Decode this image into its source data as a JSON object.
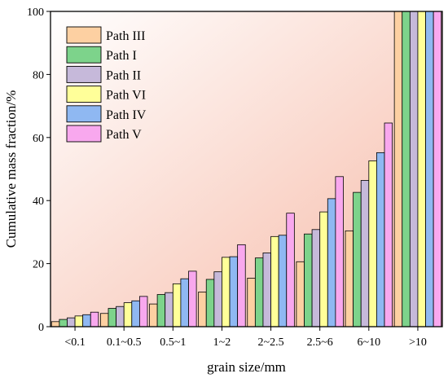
{
  "chart_data": {
    "type": "bar",
    "xlabel": "grain size/mm",
    "ylabel": "Cumulative mass fraction/%",
    "ylim": [
      0,
      100
    ],
    "yticks": [
      0,
      20,
      40,
      60,
      80,
      100
    ],
    "grid": false,
    "legend_position": "top-left",
    "background_gradient": [
      "#ffffff",
      "#f6b9a6"
    ],
    "categories": [
      "<0.1",
      "0.1~0.5",
      "0.5~1",
      "1~2",
      "2~2.5",
      "2.5~6",
      "6~10",
      ">10"
    ],
    "series": [
      {
        "name": "Path III",
        "color": "#fdd0a2",
        "values": [
          1.6,
          4.2,
          7.2,
          11.0,
          15.4,
          20.6,
          30.4,
          100
        ]
      },
      {
        "name": "Path I",
        "color": "#7dd38b",
        "values": [
          2.3,
          5.8,
          10.2,
          15.0,
          21.8,
          29.4,
          42.6,
          100
        ]
      },
      {
        "name": "Path II",
        "color": "#c6b9da",
        "values": [
          2.8,
          6.4,
          10.8,
          17.4,
          23.4,
          30.8,
          46.4,
          100
        ]
      },
      {
        "name": "Path VI",
        "color": "#ffff99",
        "values": [
          3.4,
          7.6,
          13.6,
          22.0,
          28.6,
          36.4,
          52.6,
          100
        ]
      },
      {
        "name": "Path IV",
        "color": "#8fb8f2",
        "values": [
          3.8,
          8.2,
          15.2,
          22.2,
          29.0,
          40.6,
          55.2,
          100
        ]
      },
      {
        "name": "Path V",
        "color": "#f8a8ee",
        "values": [
          4.6,
          9.6,
          17.6,
          26.0,
          36.0,
          47.6,
          64.6,
          100
        ]
      }
    ]
  }
}
